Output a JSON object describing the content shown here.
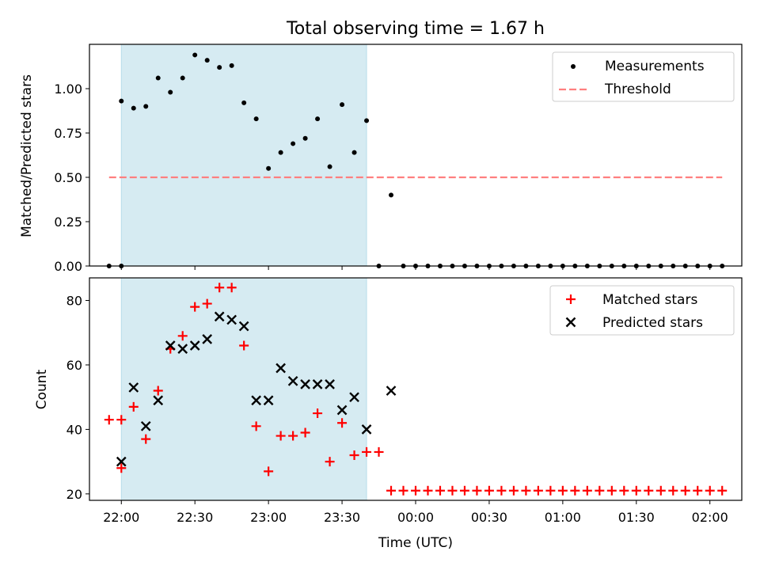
{
  "chart_data": [
    {
      "type": "scatter",
      "title": "Total observing time = 1.67 h",
      "ylabel": "Matched/Predicted stars",
      "xlabel": "",
      "x_range": [
        "21:47",
        "02:13"
      ],
      "ylim": [
        0,
        1.25
      ],
      "yticks": [
        "0.00",
        "0.25",
        "0.50",
        "0.75",
        "1.00"
      ],
      "shaded_region": [
        "22:00",
        "23:40"
      ],
      "legend": [
        {
          "label": "Measurements",
          "marker": "dot",
          "color": "#000000"
        },
        {
          "label": "Threshold",
          "marker": "dashed-line",
          "color": "#ff7f7f"
        }
      ],
      "threshold": {
        "value": 0.5,
        "from": "21:55",
        "to": "02:05",
        "color": "#ff7f7f"
      },
      "series": [
        {
          "name": "Measurements",
          "color": "#000000",
          "points": [
            [
              "21:55",
              0.0
            ],
            [
              "22:00",
              0.0
            ],
            [
              "22:00",
              0.93
            ],
            [
              "22:05",
              0.89
            ],
            [
              "22:10",
              0.9
            ],
            [
              "22:15",
              1.06
            ],
            [
              "22:20",
              0.98
            ],
            [
              "22:25",
              1.06
            ],
            [
              "22:30",
              1.19
            ],
            [
              "22:35",
              1.16
            ],
            [
              "22:40",
              1.12
            ],
            [
              "22:45",
              1.13
            ],
            [
              "22:50",
              0.92
            ],
            [
              "22:55",
              0.83
            ],
            [
              "23:00",
              0.55
            ],
            [
              "23:05",
              0.64
            ],
            [
              "23:10",
              0.69
            ],
            [
              "23:15",
              0.72
            ],
            [
              "23:20",
              0.83
            ],
            [
              "23:25",
              0.56
            ],
            [
              "23:30",
              0.91
            ],
            [
              "23:35",
              0.64
            ],
            [
              "23:40",
              0.82
            ],
            [
              "23:45",
              0.0
            ],
            [
              "23:50",
              0.4
            ],
            [
              "23:55",
              0.0
            ],
            [
              "00:00",
              0.0
            ],
            [
              "00:05",
              0.0
            ],
            [
              "00:10",
              0.0
            ],
            [
              "00:15",
              0.0
            ],
            [
              "00:20",
              0.0
            ],
            [
              "00:25",
              0.0
            ],
            [
              "00:30",
              0.0
            ],
            [
              "00:35",
              0.0
            ],
            [
              "00:40",
              0.0
            ],
            [
              "00:45",
              0.0
            ],
            [
              "00:50",
              0.0
            ],
            [
              "00:55",
              0.0
            ],
            [
              "01:00",
              0.0
            ],
            [
              "01:05",
              0.0
            ],
            [
              "01:10",
              0.0
            ],
            [
              "01:15",
              0.0
            ],
            [
              "01:20",
              0.0
            ],
            [
              "01:25",
              0.0
            ],
            [
              "01:30",
              0.0
            ],
            [
              "01:35",
              0.0
            ],
            [
              "01:40",
              0.0
            ],
            [
              "01:45",
              0.0
            ],
            [
              "01:50",
              0.0
            ],
            [
              "01:55",
              0.0
            ],
            [
              "02:00",
              0.0
            ],
            [
              "02:05",
              0.0
            ]
          ]
        }
      ]
    },
    {
      "type": "scatter",
      "title": "",
      "xlabel": "Time (UTC)",
      "ylabel": "Count",
      "x_range": [
        "21:47",
        "02:13"
      ],
      "ylim": [
        18,
        87
      ],
      "yticks": [
        "20",
        "40",
        "60",
        "80"
      ],
      "xticks": [
        "22:00",
        "22:30",
        "23:00",
        "23:30",
        "00:00",
        "00:30",
        "01:00",
        "01:30",
        "02:00"
      ],
      "shaded_region": [
        "22:00",
        "23:40"
      ],
      "legend": [
        {
          "label": "Matched stars",
          "marker": "plus",
          "color": "#ff0000"
        },
        {
          "label": "Predicted stars",
          "marker": "x",
          "color": "#000000"
        }
      ],
      "series": [
        {
          "name": "Matched stars",
          "color": "#ff0000",
          "marker": "plus",
          "points": [
            [
              "21:55",
              43
            ],
            [
              "22:00",
              43
            ],
            [
              "22:00",
              28
            ],
            [
              "22:05",
              47
            ],
            [
              "22:10",
              37
            ],
            [
              "22:15",
              52
            ],
            [
              "22:20",
              65
            ],
            [
              "22:25",
              69
            ],
            [
              "22:30",
              78
            ],
            [
              "22:35",
              79
            ],
            [
              "22:40",
              84
            ],
            [
              "22:45",
              84
            ],
            [
              "22:50",
              66
            ],
            [
              "22:55",
              41
            ],
            [
              "23:00",
              27
            ],
            [
              "23:05",
              38
            ],
            [
              "23:10",
              38
            ],
            [
              "23:15",
              39
            ],
            [
              "23:20",
              45
            ],
            [
              "23:25",
              30
            ],
            [
              "23:30",
              42
            ],
            [
              "23:35",
              32
            ],
            [
              "23:40",
              33
            ],
            [
              "23:45",
              33
            ],
            [
              "23:50",
              21
            ],
            [
              "23:55",
              21
            ],
            [
              "00:00",
              21
            ],
            [
              "00:05",
              21
            ],
            [
              "00:10",
              21
            ],
            [
              "00:15",
              21
            ],
            [
              "00:20",
              21
            ],
            [
              "00:25",
              21
            ],
            [
              "00:30",
              21
            ],
            [
              "00:35",
              21
            ],
            [
              "00:40",
              21
            ],
            [
              "00:45",
              21
            ],
            [
              "00:50",
              21
            ],
            [
              "00:55",
              21
            ],
            [
              "01:00",
              21
            ],
            [
              "01:05",
              21
            ],
            [
              "01:10",
              21
            ],
            [
              "01:15",
              21
            ],
            [
              "01:20",
              21
            ],
            [
              "01:25",
              21
            ],
            [
              "01:30",
              21
            ],
            [
              "01:35",
              21
            ],
            [
              "01:40",
              21
            ],
            [
              "01:45",
              21
            ],
            [
              "01:50",
              21
            ],
            [
              "01:55",
              21
            ],
            [
              "02:00",
              21
            ],
            [
              "02:05",
              21
            ]
          ]
        },
        {
          "name": "Predicted stars",
          "color": "#000000",
          "marker": "x",
          "points": [
            [
              "22:00",
              30
            ],
            [
              "22:05",
              53
            ],
            [
              "22:10",
              41
            ],
            [
              "22:15",
              49
            ],
            [
              "22:20",
              66
            ],
            [
              "22:25",
              65
            ],
            [
              "22:30",
              66
            ],
            [
              "22:35",
              68
            ],
            [
              "22:40",
              75
            ],
            [
              "22:45",
              74
            ],
            [
              "22:50",
              72
            ],
            [
              "22:55",
              49
            ],
            [
              "23:00",
              49
            ],
            [
              "23:05",
              59
            ],
            [
              "23:10",
              55
            ],
            [
              "23:15",
              54
            ],
            [
              "23:20",
              54
            ],
            [
              "23:25",
              54
            ],
            [
              "23:30",
              46
            ],
            [
              "23:35",
              50
            ],
            [
              "23:40",
              40
            ],
            [
              "23:50",
              52
            ]
          ]
        }
      ]
    }
  ]
}
